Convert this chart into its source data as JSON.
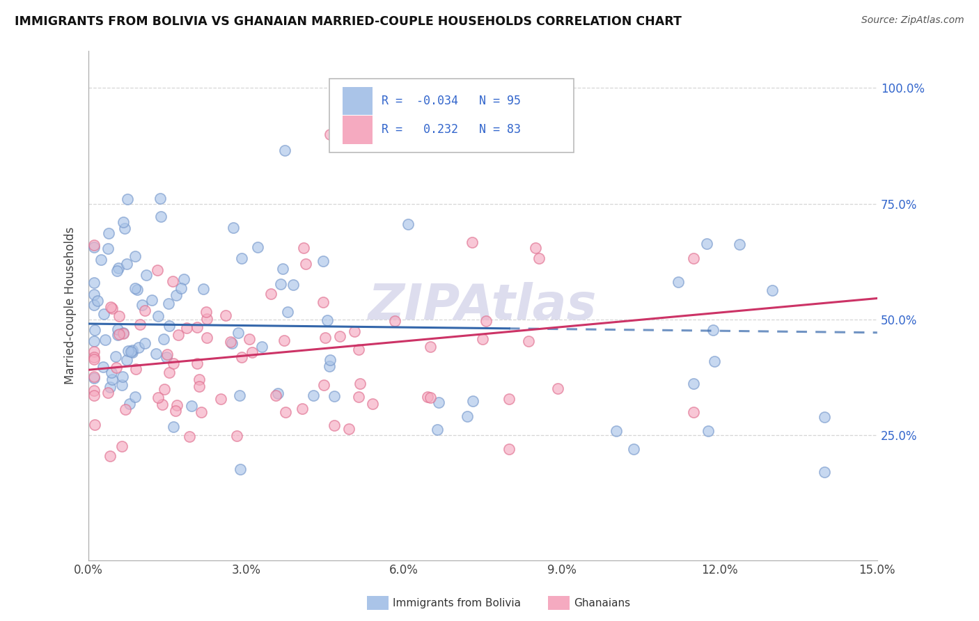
{
  "title": "IMMIGRANTS FROM BOLIVIA VS GHANAIAN MARRIED-COUPLE HOUSEHOLDS CORRELATION CHART",
  "source": "Source: ZipAtlas.com",
  "xlabel_blue": "Immigrants from Bolivia",
  "xlabel_pink": "Ghanaians",
  "ylabel": "Married-couple Households",
  "xlim": [
    0.0,
    0.15
  ],
  "ylim": [
    -0.02,
    1.08
  ],
  "xticks": [
    0.0,
    0.03,
    0.06,
    0.09,
    0.12,
    0.15
  ],
  "xticklabels": [
    "0.0%",
    "3.0%",
    "6.0%",
    "9.0%",
    "12.0%",
    "15.0%"
  ],
  "yticks": [
    0.25,
    0.5,
    0.75,
    1.0
  ],
  "yticklabels": [
    "25.0%",
    "50.0%",
    "75.0%",
    "100.0%"
  ],
  "blue_R": -0.034,
  "blue_N": 95,
  "pink_R": 0.232,
  "pink_N": 83,
  "blue_color": "#aac4e8",
  "pink_color": "#f5aac0",
  "blue_edge_color": "#7799cc",
  "pink_edge_color": "#e07090",
  "blue_line_color": "#3366aa",
  "pink_line_color": "#cc3366",
  "legend_R_color": "#3366cc",
  "background_color": "#ffffff",
  "grid_color": "#cccccc",
  "watermark_color": "#ddddee"
}
